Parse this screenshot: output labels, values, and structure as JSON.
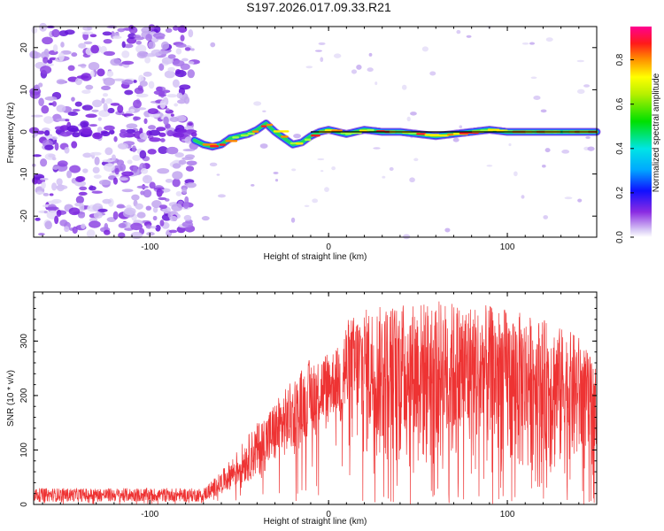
{
  "title": "S197.2026.017.09.33.R21",
  "chart_data": [
    {
      "type": "heatmap",
      "xlabel": "Height of straight line (km)",
      "ylabel": "Frequency (Hz)",
      "xlim": [
        -165,
        150
      ],
      "ylim": [
        -25,
        25
      ],
      "xticks": [
        -100,
        0,
        100
      ],
      "yticks": [
        -20,
        -10,
        0,
        10,
        20
      ],
      "colorbar": {
        "label": "Normalized spectral amplitude",
        "ticks": [
          0.0,
          0.2,
          0.4,
          0.6,
          0.8
        ],
        "range": [
          0,
          0.95
        ]
      },
      "noise_region_x": [
        -165,
        -75
      ],
      "signal_track": {
        "x": [
          -75,
          -70,
          -65,
          -60,
          -55,
          -50,
          -45,
          -40,
          -35,
          -30,
          -25,
          -20,
          -15,
          -10,
          -5,
          0,
          5,
          10,
          15,
          20,
          30,
          40,
          50,
          60,
          70,
          80,
          90,
          100,
          110,
          120,
          130,
          140,
          150
        ],
        "freq": [
          -2,
          -3,
          -3.5,
          -3,
          -1.5,
          -1,
          -0.5,
          0.5,
          2,
          0,
          -1.5,
          -3,
          -2.5,
          -1,
          0,
          0.5,
          0,
          -0.5,
          0,
          0.5,
          0,
          0,
          -0.5,
          -1,
          -0.5,
          0,
          0.5,
          0,
          0,
          0,
          0,
          0,
          0
        ]
      },
      "reference_line": {
        "x": [
          -10,
          150
        ],
        "freq": [
          0,
          0
        ]
      }
    },
    {
      "type": "line",
      "xlabel": "Height of straight line (km)",
      "ylabel": "SNR (10 * v/v)",
      "xlim": [
        -165,
        150
      ],
      "ylim": [
        0,
        390
      ],
      "xticks": [
        -100,
        0,
        100
      ],
      "yticks": [
        0,
        100,
        200,
        300
      ],
      "color": "#ee3333",
      "envelope": {
        "x": [
          -165,
          -70,
          -60,
          -40,
          -20,
          -10,
          5,
          10,
          20,
          40,
          60,
          80,
          100,
          120,
          140,
          150
        ],
        "upper": [
          30,
          30,
          60,
          150,
          230,
          270,
          290,
          340,
          360,
          370,
          375,
          370,
          360,
          340,
          310,
          250
        ],
        "lower": [
          5,
          5,
          20,
          50,
          100,
          130,
          170,
          80,
          60,
          40,
          30,
          25,
          20,
          20,
          30,
          40
        ]
      }
    }
  ]
}
